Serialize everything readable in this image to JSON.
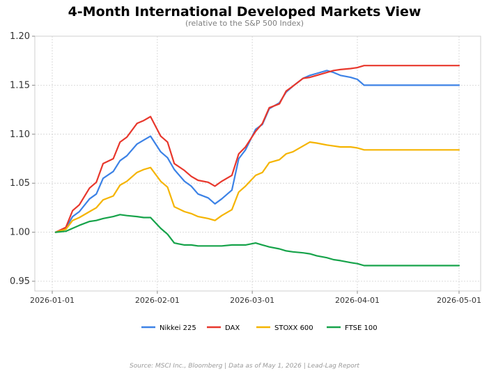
{
  "chart_data": {
    "type": "line",
    "title": "4-Month International Developed Markets View",
    "subtitle": "(relative to the S&P 500 Index)",
    "source": "Source: MSCI Inc., Bloomberg  |  Data as of May 1, 2026  |  Lead-Lag Report",
    "xlabel": "",
    "ylabel": "",
    "xlim": [
      "2026-01-01",
      "2026-05-01"
    ],
    "ylim": [
      0.95,
      1.2
    ],
    "x_ticks": [
      "2026-01-01",
      "2026-02-01",
      "2026-03-01",
      "2026-04-01",
      "2026-05-01"
    ],
    "y_ticks": [
      "0.95",
      "1.00",
      "1.05",
      "1.10",
      "1.15",
      "1.20"
    ],
    "grid": true,
    "legend_position": "bottom",
    "x": [
      "2026-01-02",
      "2026-01-05",
      "2026-01-07",
      "2026-01-09",
      "2026-01-12",
      "2026-01-14",
      "2026-01-16",
      "2026-01-19",
      "2026-01-21",
      "2026-01-23",
      "2026-01-26",
      "2026-01-28",
      "2026-01-30",
      "2026-02-02",
      "2026-02-04",
      "2026-02-06",
      "2026-02-09",
      "2026-02-11",
      "2026-02-13",
      "2026-02-16",
      "2026-02-18",
      "2026-02-20",
      "2026-02-23",
      "2026-02-25",
      "2026-02-27",
      "2026-03-02",
      "2026-03-04",
      "2026-03-06",
      "2026-03-09",
      "2026-03-11",
      "2026-03-13",
      "2026-03-16",
      "2026-03-18",
      "2026-03-20",
      "2026-03-23",
      "2026-03-25",
      "2026-03-27",
      "2026-03-30",
      "2026-04-01",
      "2026-04-03",
      "2026-04-06",
      "2026-04-08",
      "2026-04-10",
      "2026-04-13",
      "2026-04-15",
      "2026-04-17",
      "2026-04-20",
      "2026-04-22",
      "2026-04-24",
      "2026-04-27",
      "2026-04-29",
      "2026-05-01"
    ],
    "series": [
      {
        "name": "Nikkei 225",
        "color": "#3c82e6",
        "values": [
          1.0,
          1.004,
          1.016,
          1.021,
          1.034,
          1.039,
          1.055,
          1.062,
          1.073,
          1.078,
          1.09,
          1.094,
          1.098,
          1.082,
          1.076,
          1.064,
          1.052,
          1.047,
          1.039,
          1.035,
          1.029,
          1.034,
          1.043,
          1.075,
          1.084,
          1.105,
          1.11,
          1.126,
          1.132,
          1.143,
          1.149,
          1.157,
          1.16,
          1.162,
          1.165,
          1.163,
          1.16,
          1.158,
          1.156,
          1.15,
          1.15,
          1.15,
          1.15,
          1.15,
          1.15,
          1.15,
          1.15,
          1.15,
          1.15,
          1.15,
          1.15,
          1.15
        ]
      },
      {
        "name": "DAX",
        "color": "#e8372c",
        "values": [
          1.0,
          1.005,
          1.022,
          1.028,
          1.045,
          1.051,
          1.07,
          1.075,
          1.092,
          1.097,
          1.111,
          1.114,
          1.118,
          1.098,
          1.092,
          1.07,
          1.063,
          1.057,
          1.053,
          1.051,
          1.047,
          1.052,
          1.058,
          1.08,
          1.087,
          1.103,
          1.111,
          1.127,
          1.131,
          1.144,
          1.149,
          1.157,
          1.158,
          1.16,
          1.163,
          1.165,
          1.166,
          1.167,
          1.168,
          1.17,
          1.17,
          1.17,
          1.17,
          1.17,
          1.17,
          1.17,
          1.17,
          1.17,
          1.17,
          1.17,
          1.17,
          1.17
        ]
      },
      {
        "name": "STOXX 600",
        "color": "#f5b400",
        "values": [
          1.0,
          1.003,
          1.012,
          1.015,
          1.021,
          1.025,
          1.033,
          1.037,
          1.048,
          1.052,
          1.061,
          1.064,
          1.066,
          1.052,
          1.046,
          1.026,
          1.021,
          1.019,
          1.016,
          1.014,
          1.012,
          1.017,
          1.023,
          1.041,
          1.047,
          1.058,
          1.061,
          1.071,
          1.074,
          1.08,
          1.082,
          1.088,
          1.092,
          1.091,
          1.089,
          1.088,
          1.087,
          1.087,
          1.086,
          1.084,
          1.084,
          1.084,
          1.084,
          1.084,
          1.084,
          1.084,
          1.084,
          1.084,
          1.084,
          1.084,
          1.084,
          1.084
        ]
      },
      {
        "name": "FTSE 100",
        "color": "#16a34a",
        "values": [
          1.0,
          1.001,
          1.004,
          1.007,
          1.011,
          1.012,
          1.014,
          1.016,
          1.018,
          1.017,
          1.016,
          1.015,
          1.015,
          1.004,
          0.998,
          0.989,
          0.987,
          0.987,
          0.986,
          0.986,
          0.986,
          0.986,
          0.987,
          0.987,
          0.987,
          0.989,
          0.987,
          0.985,
          0.983,
          0.981,
          0.98,
          0.979,
          0.978,
          0.976,
          0.974,
          0.972,
          0.971,
          0.969,
          0.968,
          0.966,
          0.966,
          0.966,
          0.966,
          0.966,
          0.966,
          0.966,
          0.966,
          0.966,
          0.966,
          0.966,
          0.966,
          0.966
        ]
      }
    ]
  }
}
